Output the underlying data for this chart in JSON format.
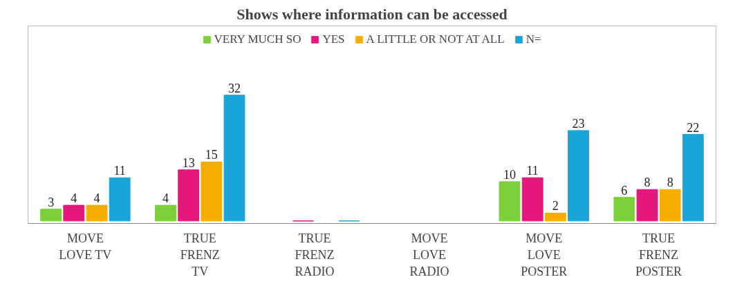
{
  "chart_data": {
    "type": "bar",
    "title": "Shows where information can be accessed",
    "categories": [
      "MOVE\nLOVE TV",
      "TRUE\nFRENZ\nTV",
      "TRUE\nFRENZ\nRADIO",
      "MOVE\nLOVE\nRADIO",
      "MOVE\nLOVE\nPOSTER",
      "TRUE\nFRENZ\nPOSTER"
    ],
    "series": [
      {
        "name": "VERY MUCH SO",
        "color": "#7dcf3a",
        "values": [
          3,
          4,
          null,
          null,
          10,
          6
        ],
        "value_labels": [
          "3",
          "4",
          null,
          null,
          "10",
          "6"
        ]
      },
      {
        "name": "YES",
        "color": "#e5177b",
        "values": [
          4,
          13,
          0,
          null,
          11,
          8
        ],
        "value_labels": [
          "4",
          "13",
          null,
          null,
          "11",
          "8"
        ]
      },
      {
        "name": "A LITTLE OR NOT AT ALL",
        "color": "#f5ae00",
        "values": [
          4,
          15,
          null,
          null,
          2,
          8
        ],
        "value_labels": [
          "4",
          "15",
          null,
          null,
          "2",
          "8"
        ]
      },
      {
        "name": "N=",
        "color": "#1aa5d8",
        "values": [
          11,
          32,
          0,
          null,
          23,
          22
        ],
        "value_labels": [
          "11",
          "32",
          null,
          null,
          "23",
          "22"
        ]
      }
    ],
    "legend": "top"
  }
}
